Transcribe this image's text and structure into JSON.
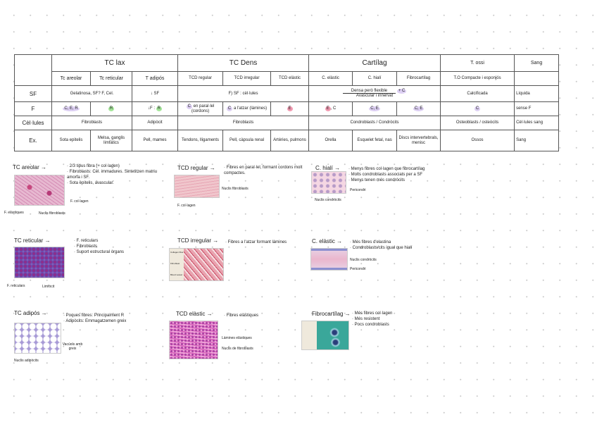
{
  "table": {
    "groups": [
      "TC lax",
      "TC Dens",
      "Cartílag",
      "T. ossi",
      "Sang"
    ],
    "subtypes": [
      "Tc areolar",
      "Tc reticular",
      "T adipós",
      "TCD regular",
      "TCD irregular",
      "TCD elàstic",
      "C. elàstic",
      "C. hialí",
      "Fibrocartílag",
      "T.O Compacte i esponjós"
    ],
    "rows": {
      "sf": {
        "label": "SF",
        "lax": "Gelatinosa, SF? F, Cel.",
        "adipos": "↓ SF",
        "dens": "F) SF : cèl·lules",
        "cart_top": "Densa però flexible",
        "cart_arrow": "+ C",
        "cart_bottom": "Avascular i innervat",
        "ossi": "Calcificada",
        "sang": "Líquida"
      },
      "f": {
        "label": "F",
        "areolar": "C, E, R",
        "reticular": "R",
        "adipos_pre": "↓F :",
        "adipos": "R",
        "regular_c": "C",
        "regular": "en paral·lel (cordons)",
        "irregular_c": "C",
        "irregular": "a l'atzar (làmines)",
        "elastic": "E",
        "c_elastic_e": "E",
        "c_elastic": ", C",
        "hiali": "C, E",
        "fibro": "C, E",
        "ossi": "C",
        "sang": "sense F"
      },
      "cells": {
        "label": "Cèl·lules",
        "lax": "Fibroblasts",
        "adipos": "Adipòcit",
        "dens": "Fibroblasts",
        "cart": "Condroblasts / Condròcits",
        "ossi": "Osteoblasts / osteòcits",
        "sang": "Cèl·lules sang"
      },
      "ex": {
        "label": "Ex.",
        "areolar": "Sota epitelis",
        "reticular": "Melsa, ganglis limfàtics",
        "adipos": "Pell, mames",
        "regular": "Tendons, lligaments",
        "irregular": "Pell, càpsula renal",
        "elastic": "Artèries, pulmons",
        "c_elastic": "Orella",
        "hiali": "Esquelet fetal, nas",
        "fibro": "Discs intervertebrals, menisc",
        "ossi": "Ossos",
        "sang": "Sang"
      }
    }
  },
  "cards": [
    {
      "title": "TC areolar →",
      "bullets": [
        "2/3 tipus fibra (+ col·lagen)",
        "Fibroblasts: Cèl. immadures. Sintetitzen matriu amorfa i SF.",
        "Sota epitelis, avascular."
      ],
      "labels": [
        "F. col·lagen",
        "F. elàstiques",
        "Nuclis fibroblasts"
      ]
    },
    {
      "title": "TCD regular →",
      "bullets": [
        "Fibres en paral·lel, formant cordons molt compactes."
      ],
      "labels": [
        "Nuclis fibroblasts",
        "F. col·lagen"
      ]
    },
    {
      "title": "C. hialí →",
      "bullets": [
        "Menys fibres col·lagen que fibrocartílag",
        "Molts condroblasts associats per a SF",
        "Menys tenen més condròcits"
      ],
      "labels": [
        "Pericondri",
        "Nuclis condròcits"
      ]
    },
    {
      "title": "TC reticular →",
      "bullets": [
        "F. reticulars",
        "Fibroblasts",
        "Suport estructural òrgans"
      ],
      "labels": [
        "F. reticulars",
        "Limfòcit"
      ]
    },
    {
      "title": "TCD irregular →",
      "bullets": [
        "Fibres a l'atzar formant làmines"
      ],
      "labels": [
        "Collagen fiber",
        "Fibroblast",
        "Blood vessel"
      ]
    },
    {
      "title": "C. elàstic →",
      "bullets": [
        "Més fibres d'elastina",
        "Condroblasts/cits igual que hialí"
      ],
      "labels": [
        "Nuclis condròcits",
        "Pericondri"
      ]
    },
    {
      "title": "TC adipós →",
      "bullets": [
        "Poques fibres: Principalment R",
        "Adipòcits: Emmagatzemen greix"
      ],
      "labels": [
        "Vacúols amb greix",
        "Nuclis adipòcits"
      ]
    },
    {
      "title": "TCD elàstic →",
      "bullets": [
        "Fibres elàstiques"
      ],
      "labels": [
        "Làmines elàstiques",
        "Nuclis de fibroblasts"
      ]
    },
    {
      "title": "Fibrocartílag →",
      "bullets": [
        "Més fibres col·lagen",
        "Més resistent",
        "Pocs condroblasts"
      ],
      "labels": []
    }
  ]
}
